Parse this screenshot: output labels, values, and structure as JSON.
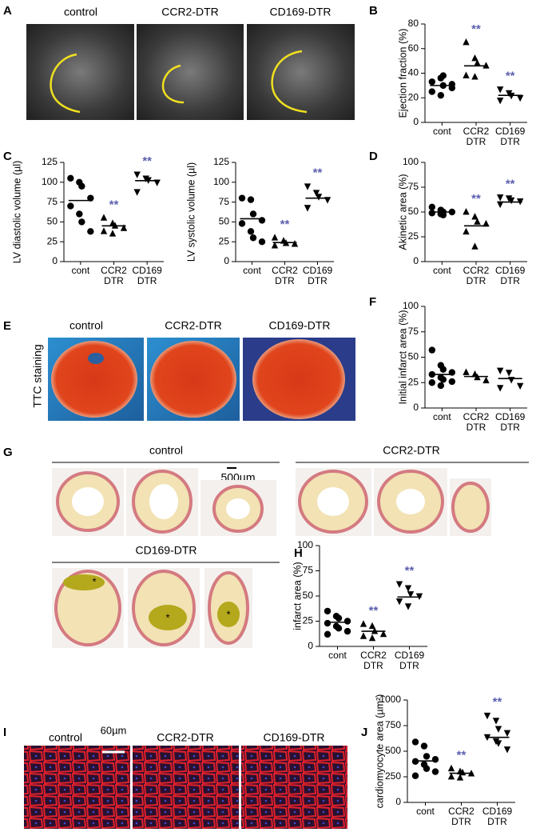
{
  "figure": {
    "letters": [
      "A",
      "B",
      "C",
      "D",
      "E",
      "F",
      "G",
      "H",
      "I",
      "J"
    ],
    "panel_a": {
      "labels": [
        "control",
        "CCR2-DTR",
        "CD169-DTR"
      ]
    },
    "panel_e": {
      "labels": [
        "control",
        "CCR2-DTR",
        "CD169-DTR"
      ],
      "side_label": "TTC staining"
    },
    "panel_g": {
      "groups": [
        "control",
        "CCR2-DTR",
        "CD169-DTR"
      ],
      "scale_bar": "500µm",
      "asterisk": "*"
    },
    "panel_i": {
      "labels": [
        "control",
        "CCR2-DTR",
        "CD169-DTR"
      ],
      "scale_bar": "60µm"
    }
  },
  "chart_data": [
    {
      "type": "dotplot",
      "ylabel": "Ejection fraction (%)",
      "categories": [
        "cont",
        "CCR2 DTR",
        "CD169 DTR"
      ],
      "markers": [
        "circle",
        "triangle-up",
        "triangle-down"
      ],
      "color": "#000000",
      "significance_color": "#5b5fae",
      "points": [
        [
          33,
          36,
          30,
          28,
          25,
          22,
          38,
          31
        ],
        [
          65,
          52,
          48,
          46,
          38,
          37
        ],
        [
          27,
          24,
          22,
          20,
          18
        ]
      ],
      "means": [
        30,
        46,
        22
      ],
      "significance": [
        null,
        "**",
        "**"
      ],
      "ylim": [
        0,
        80
      ],
      "yticks": [
        0,
        20,
        40,
        60,
        80
      ]
    },
    {
      "type": "dotplot",
      "ylabel": "LV diastolic volume (µl)",
      "categories": [
        "cont",
        "CCR2 DTR",
        "CD169 DTR"
      ],
      "markers": [
        "circle",
        "triangle-up",
        "triangle-down"
      ],
      "color": "#000000",
      "significance_color": "#5b5fae",
      "points": [
        [
          105,
          100,
          95,
          80,
          70,
          60,
          50,
          38
        ],
        [
          55,
          48,
          45,
          42,
          38,
          35
        ],
        [
          110,
          105,
          103,
          100,
          88
        ]
      ],
      "means": [
        77,
        45,
        102
      ],
      "significance": [
        null,
        "**",
        "**"
      ],
      "ylim": [
        0,
        125
      ],
      "yticks": [
        0,
        25,
        50,
        75,
        100,
        125
      ]
    },
    {
      "type": "dotplot",
      "ylabel": "LV systolic volume (µl)",
      "categories": [
        "cont",
        "CCR2 DTR",
        "CD169 DTR"
      ],
      "markers": [
        "circle",
        "triangle-up",
        "triangle-down"
      ],
      "color": "#000000",
      "significance_color": "#5b5fae",
      "points": [
        [
          80,
          78,
          60,
          52,
          48,
          38,
          30,
          25
        ],
        [
          30,
          26,
          23,
          22,
          20
        ],
        [
          95,
          87,
          82,
          78,
          68
        ]
      ],
      "means": [
        54,
        24,
        80
      ],
      "significance": [
        null,
        "**",
        "**"
      ],
      "ylim": [
        0,
        125
      ],
      "yticks": [
        0,
        25,
        50,
        75,
        100,
        125
      ]
    },
    {
      "type": "dotplot",
      "ylabel": "Akinetic area (%)",
      "categories": [
        "cont",
        "CCR2 DTR",
        "CD169 DTR"
      ],
      "markers": [
        "circle",
        "triangle-up",
        "triangle-down"
      ],
      "color": "#000000",
      "significance_color": "#5b5fae",
      "points": [
        [
          55,
          52,
          50,
          50,
          49,
          48,
          47
        ],
        [
          50,
          45,
          40,
          38,
          30,
          15
        ],
        [
          65,
          64,
          62,
          61,
          58
        ]
      ],
      "means": [
        50,
        36,
        60
      ],
      "significance": [
        null,
        "**",
        "**"
      ],
      "ylim": [
        0,
        100
      ],
      "yticks": [
        0,
        25,
        50,
        75,
        100
      ]
    },
    {
      "type": "dotplot",
      "ylabel": "Initial infarct area (%)",
      "categories": [
        "cont",
        "CCR2 DTR",
        "CD169 DTR"
      ],
      "markers": [
        "circle",
        "triangle-up",
        "triangle-down"
      ],
      "color": "#000000",
      "points": [
        [
          57,
          42,
          38,
          35,
          33,
          30,
          28,
          26,
          25,
          22
        ],
        [
          35,
          33,
          30,
          27
        ],
        [
          37,
          35,
          28,
          22,
          20
        ]
      ],
      "means": [
        33,
        31,
        29
      ],
      "ylim": [
        0,
        100
      ],
      "yticks": [
        0,
        25,
        50,
        75,
        100
      ]
    },
    {
      "type": "dotplot",
      "ylabel": "infarct area (%)",
      "categories": [
        "cont",
        "CCR2 DTR",
        "CD169 DTR"
      ],
      "markers": [
        "circle",
        "triangle-up",
        "triangle-down"
      ],
      "color": "#000000",
      "significance_color": "#5b5fae",
      "points": [
        [
          35,
          30,
          28,
          25,
          23,
          20,
          18,
          15,
          12
        ],
        [
          22,
          20,
          15,
          12,
          10,
          8
        ],
        [
          62,
          58,
          52,
          50,
          45,
          40
        ]
      ],
      "means": [
        24,
        15,
        49
      ],
      "significance": [
        null,
        "**",
        "**"
      ],
      "ylim": [
        0,
        100
      ],
      "yticks": [
        0,
        25,
        50,
        75,
        100
      ]
    },
    {
      "type": "dotplot",
      "ylabel": "cardiomyocyte area (µm²)",
      "categories": [
        "cont",
        "CCR2 DTR",
        "CD169 DTR"
      ],
      "markers": [
        "circle",
        "triangle-up",
        "triangle-down"
      ],
      "color": "#000000",
      "significance_color": "#5b5fae",
      "points": [
        [
          590,
          550,
          450,
          420,
          400,
          370,
          330,
          300,
          260
        ],
        [
          330,
          300,
          290,
          280,
          250,
          240
        ],
        [
          850,
          800,
          720,
          680,
          640,
          600,
          580,
          520
        ]
      ],
      "means": [
        405,
        285,
        635
      ],
      "significance": [
        null,
        "**",
        "**"
      ],
      "ylim": [
        0,
        1000
      ],
      "yticks": [
        0,
        250,
        500,
        750,
        1000
      ]
    }
  ]
}
